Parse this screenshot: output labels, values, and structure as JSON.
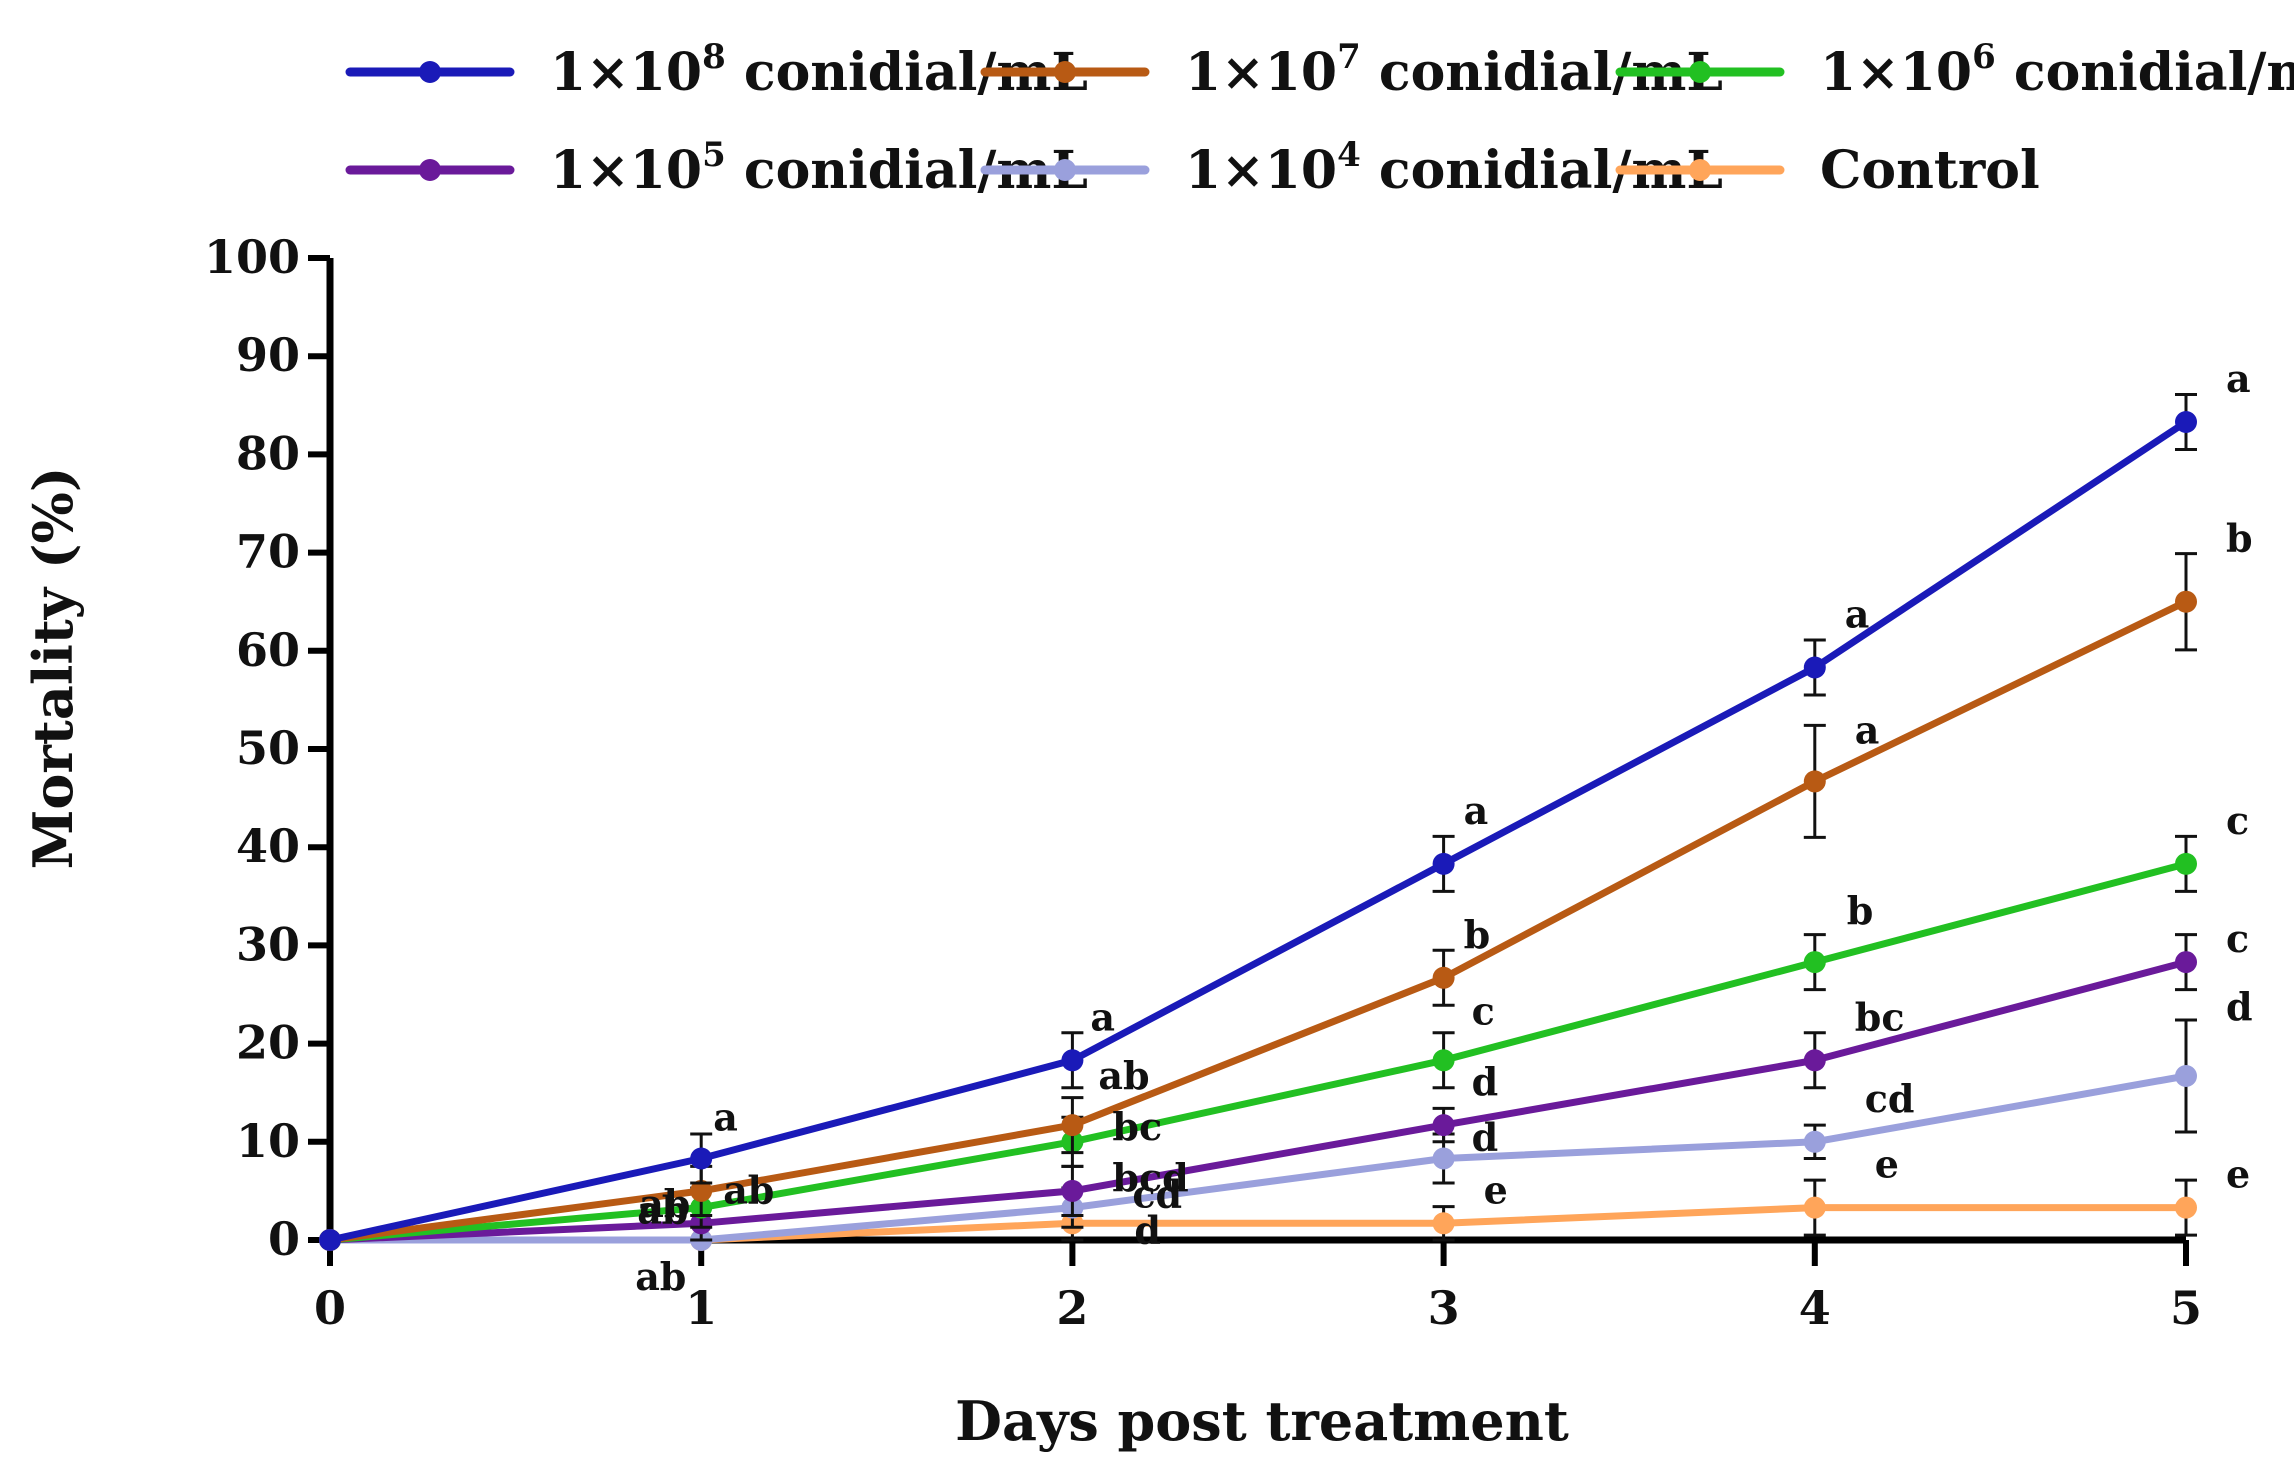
{
  "chart_data": {
    "type": "line",
    "title": "",
    "xlabel": "Days post treatment",
    "ylabel": "Mortality (%)",
    "x": [
      0,
      1,
      2,
      3,
      4,
      5
    ],
    "xlim": [
      0,
      5
    ],
    "ylim": [
      0,
      100
    ],
    "xticks": [
      "0",
      "1",
      "2",
      "3",
      "4",
      "5"
    ],
    "yticks": [
      "0",
      "10",
      "20",
      "30",
      "40",
      "50",
      "60",
      "70",
      "80",
      "90",
      "100"
    ],
    "grid": false,
    "legend_position": "top",
    "series": [
      {
        "name": "1×10",
        "superscript": "8",
        "unit": " conidial/mL",
        "color": "#1a1ab8",
        "values": [
          0,
          8.3,
          18.3,
          38.3,
          58.3,
          83.3
        ],
        "errors": [
          0,
          2.5,
          2.8,
          2.8,
          2.8,
          2.8
        ],
        "labels": [
          "",
          "a",
          "a",
          "a",
          "a",
          "a"
        ]
      },
      {
        "name": "1×10",
        "superscript": "7",
        "unit": " conidial/mL",
        "color": "#b85a14",
        "values": [
          0,
          5.0,
          11.7,
          26.7,
          46.7,
          65.0
        ],
        "errors": [
          0,
          2.5,
          2.8,
          2.8,
          5.7,
          4.9
        ],
        "labels": [
          "",
          "ab",
          "ab",
          "b",
          "a",
          "b"
        ]
      },
      {
        "name": "1×10",
        "superscript": "6",
        "unit": " conidial/mL",
        "color": "#22c022",
        "values": [
          0,
          3.3,
          10.0,
          18.3,
          28.3,
          38.3
        ],
        "errors": [
          0,
          2.0,
          2.5,
          2.8,
          2.8,
          2.8
        ],
        "labels": [
          "",
          "ab",
          "bc",
          "c",
          "b",
          "c"
        ]
      },
      {
        "name": "1×10",
        "superscript": "5",
        "unit": " conidial/mL",
        "color": "#6a1a9a",
        "values": [
          0,
          1.7,
          5.0,
          11.7,
          18.3,
          28.3
        ],
        "errors": [
          0,
          1.7,
          2.5,
          1.7,
          2.8,
          2.8
        ],
        "labels": [
          "",
          "ab",
          "bcd",
          "d",
          "bc",
          "c"
        ]
      },
      {
        "name": "1×10",
        "superscript": "4",
        "unit": " conidial/mL",
        "color": "#9aa0dc",
        "values": [
          0,
          0,
          3.3,
          8.3,
          10.0,
          16.7
        ],
        "errors": [
          0,
          0,
          2.0,
          2.5,
          1.7,
          5.7
        ],
        "labels": [
          "",
          "ab",
          "cd",
          "d",
          "cd",
          "d"
        ]
      },
      {
        "name": "Control",
        "superscript": "",
        "unit": "",
        "color": "#ffa55a",
        "values": [
          0,
          0,
          1.7,
          1.7,
          3.3,
          3.3
        ],
        "errors": [
          0,
          0,
          1.7,
          1.7,
          2.8,
          2.8
        ],
        "labels": [
          "",
          "",
          "d",
          "e",
          "e",
          "e"
        ]
      }
    ]
  }
}
